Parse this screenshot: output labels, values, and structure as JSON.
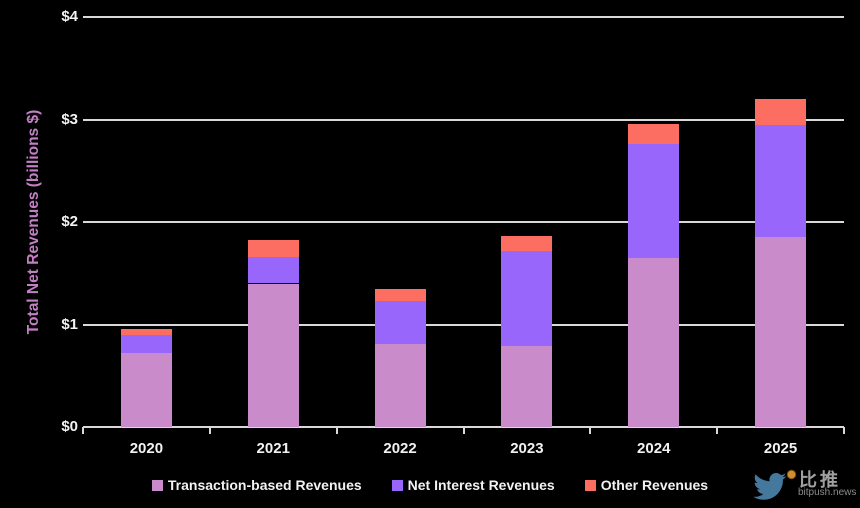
{
  "chart_data": {
    "type": "bar",
    "stacked": true,
    "title": "",
    "xlabel": "",
    "ylabel": "Total Net Revenues (billions $)",
    "ylim": [
      0,
      4
    ],
    "grid": true,
    "legend_position": "bottom",
    "categories": [
      "2020",
      "2021",
      "2022",
      "2023",
      "2024",
      "2025"
    ],
    "yticks": [
      {
        "value": 0,
        "label": "$0"
      },
      {
        "value": 1,
        "label": "$1"
      },
      {
        "value": 2,
        "label": "$2"
      },
      {
        "value": 3,
        "label": "$3"
      },
      {
        "value": 4,
        "label": "$4"
      }
    ],
    "series": [
      {
        "name": "Transaction-based Revenues",
        "color": "#c98bca",
        "values": [
          0.72,
          1.4,
          0.81,
          0.79,
          1.65,
          1.85
        ]
      },
      {
        "name": "Net Interest Revenues",
        "color": "#9966fb",
        "values": [
          0.18,
          0.26,
          0.42,
          0.93,
          1.11,
          1.1
        ]
      },
      {
        "name": "Other Revenues",
        "color": "#fd6e62",
        "values": [
          0.06,
          0.16,
          0.12,
          0.14,
          0.2,
          0.25
        ]
      }
    ]
  },
  "colors": {
    "background": "#000000",
    "grid": "#d9d9d9",
    "axis_text": "#f2f2f2",
    "y_title": "#c47fc6",
    "watermark_bird": "#44789c",
    "watermark_coin": "#d28f2c",
    "watermark_text": "#a0a0a0"
  },
  "watermark": {
    "brand_cn": "比推",
    "brand_domain": "bitpush.news"
  }
}
